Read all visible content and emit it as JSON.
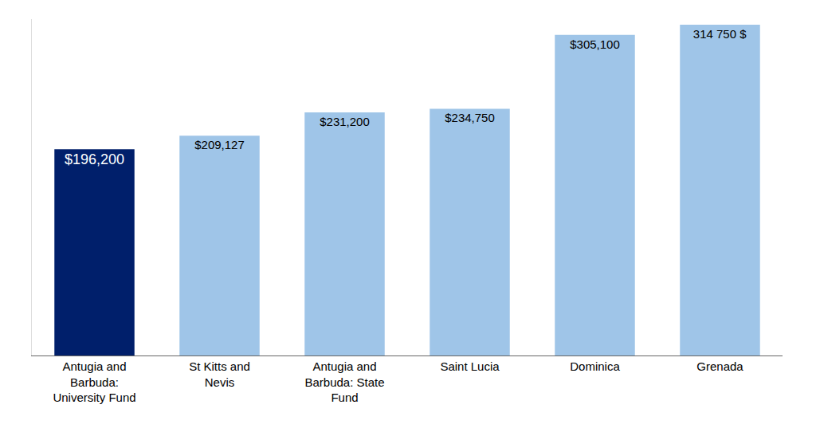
{
  "chart_data": {
    "type": "bar",
    "categories": [
      "Antugia and Barbuda: University Fund",
      "St Kitts and Nevis",
      "Antugia and Barbuda: State Fund",
      "Saint Lucia",
      "Dominica",
      "Grenada"
    ],
    "values": [
      196200,
      209127,
      231200,
      234750,
      305100,
      314750
    ],
    "value_labels": [
      "$196,200",
      "$209,127",
      "$231,200",
      "$234,750",
      "$305,100",
      "314 750 $"
    ],
    "colors": [
      "#001f6b",
      "#9fc5e8",
      "#9fc5e8",
      "#9fc5e8",
      "#9fc5e8",
      "#9fc5e8"
    ],
    "ylim": [
      0,
      320000
    ],
    "data_labels": true,
    "grid": false,
    "tick_labels": "x"
  }
}
